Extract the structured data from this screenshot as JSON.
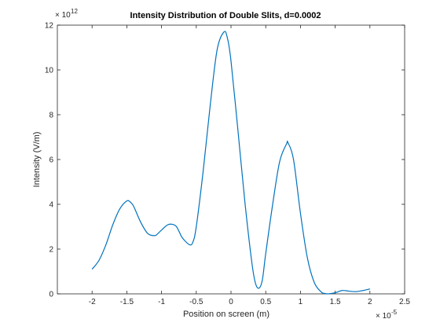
{
  "chart_data": {
    "type": "line",
    "title": "Intensity Distribution of Double Slits, d=0.0002",
    "xlabel": "Position on screen (m)",
    "ylabel": "Intensity (V/m)",
    "x_exponent_base": "× 10",
    "x_exponent_power": "-5",
    "y_exponent_base": "× 10",
    "y_exponent_power": "12",
    "xlim": [
      -2.5,
      2.5
    ],
    "ylim": [
      0,
      12
    ],
    "xticks": [
      -2,
      -1.5,
      -1,
      -0.5,
      0,
      0.5,
      1,
      1.5,
      2,
      2.5
    ],
    "xtick_labels": [
      "-2",
      "-1.5",
      "-1",
      "-0.5",
      "0",
      "0.5",
      "1",
      "1.5",
      "2",
      "2.5"
    ],
    "yticks": [
      0,
      2,
      4,
      6,
      8,
      10,
      12
    ],
    "ytick_labels": [
      "0",
      "2",
      "4",
      "6",
      "8",
      "10",
      "12"
    ],
    "grid": false,
    "line_color": "#0072bd",
    "series": [
      {
        "x": [
          -2.0,
          -1.9,
          -1.8,
          -1.7,
          -1.6,
          -1.5,
          -1.45,
          -1.4,
          -1.3,
          -1.2,
          -1.1,
          -1.05,
          -1.0,
          -0.9,
          -0.8,
          -0.75,
          -0.7,
          -0.6,
          -0.55,
          -0.5,
          -0.4,
          -0.3,
          -0.2,
          -0.1,
          -0.05,
          0.0,
          0.1,
          0.2,
          0.3,
          0.35,
          0.4,
          0.45,
          0.5,
          0.6,
          0.7,
          0.8,
          0.82,
          0.9,
          1.0,
          1.1,
          1.2,
          1.3,
          1.35,
          1.4,
          1.5,
          1.6,
          1.7,
          1.8,
          1.9,
          2.0
        ],
        "y": [
          1.1,
          1.5,
          2.2,
          3.1,
          3.8,
          4.15,
          4.1,
          3.9,
          3.2,
          2.7,
          2.6,
          2.7,
          2.85,
          3.1,
          3.05,
          2.8,
          2.5,
          2.2,
          2.3,
          3.0,
          5.5,
          8.4,
          10.9,
          11.7,
          11.4,
          10.4,
          7.3,
          4.1,
          1.4,
          0.5,
          0.25,
          0.6,
          1.8,
          4.0,
          5.9,
          6.7,
          6.75,
          6.0,
          3.6,
          1.6,
          0.5,
          0.08,
          0.02,
          0.0,
          0.05,
          0.15,
          0.12,
          0.1,
          0.15,
          0.22
        ]
      }
    ]
  }
}
